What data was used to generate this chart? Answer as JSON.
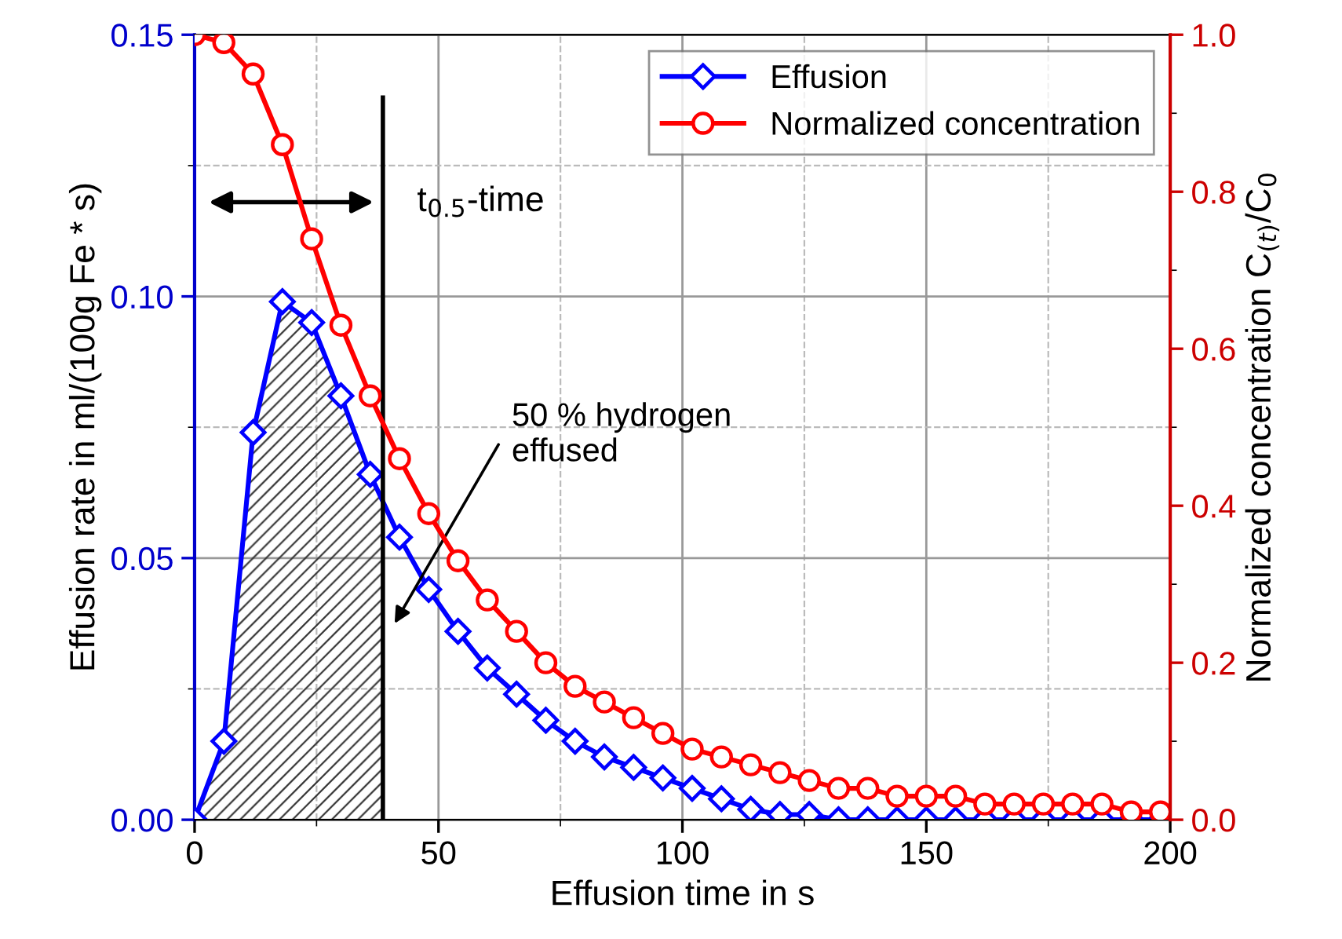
{
  "chart_data": {
    "type": "line",
    "xlabel": "Effusion time in s",
    "ylabel": "Effusion rate in ml/(100g Fe * s)",
    "y2label": "Normalized concentration C$_{(t)}$/C$_{0}$",
    "x": [
      0,
      6,
      12,
      18,
      24,
      30,
      36,
      42,
      48,
      54,
      60,
      66,
      72,
      78,
      84,
      90,
      96,
      102,
      108,
      114,
      120,
      126,
      132,
      138,
      144,
      150,
      156,
      162,
      168,
      174,
      180,
      186,
      192,
      198
    ],
    "series": [
      {
        "name": "Effusion",
        "color": "#0000ff",
        "marker": "diamond",
        "values": [
          0.0,
          0.015,
          0.074,
          0.099,
          0.095,
          0.081,
          0.066,
          0.054,
          0.044,
          0.036,
          0.029,
          0.024,
          0.019,
          0.015,
          0.012,
          0.01,
          0.008,
          0.006,
          0.004,
          0.002,
          0.001,
          0.001,
          0.0,
          0.0,
          0.0,
          0.0,
          0.0,
          0.0,
          0.0,
          0.0,
          0.0,
          0.0,
          0.0,
          0.0
        ]
      },
      {
        "name": "Normalized concentration",
        "color": "#ff0000",
        "marker": "circle",
        "axis": "y2",
        "values": [
          1.0,
          0.99,
          0.95,
          0.86,
          0.74,
          0.63,
          0.54,
          0.46,
          0.39,
          0.33,
          0.28,
          0.24,
          0.2,
          0.17,
          0.15,
          0.13,
          0.11,
          0.09,
          0.08,
          0.07,
          0.06,
          0.05,
          0.04,
          0.04,
          0.03,
          0.03,
          0.03,
          0.02,
          0.02,
          0.02,
          0.02,
          0.02,
          0.01,
          0.01
        ]
      }
    ],
    "xlim": [
      0,
      200
    ],
    "xticks": [
      0,
      50,
      100,
      150,
      200
    ],
    "ylim": [
      0,
      0.15
    ],
    "yticks": [
      {
        "value": 0,
        "label": "0.00"
      },
      {
        "value": 0.05,
        "label": "0.05"
      },
      {
        "value": 0.1,
        "label": "0.10"
      },
      {
        "value": 0.15,
        "label": "0.15"
      }
    ],
    "y2lim": [
      0,
      1.0
    ],
    "y2ticks": [
      {
        "value": 0,
        "label": "0.0"
      },
      {
        "value": 0.2,
        "label": "0.2"
      },
      {
        "value": 0.4,
        "label": "0.4"
      },
      {
        "value": 0.6,
        "label": "0.6"
      },
      {
        "value": 0.8,
        "label": "0.8"
      },
      {
        "value": 1.0,
        "label": "1.0"
      }
    ],
    "ref_lines": [
      {
        "axis": "x",
        "value": 38.6,
        "label": "t$_{0.5}$-time",
        "color": "#000000"
      }
    ],
    "annotations": [
      "50 % hydrogen\neffused"
    ],
    "grid": true,
    "legend": "top right",
    "line_style": "solid"
  }
}
